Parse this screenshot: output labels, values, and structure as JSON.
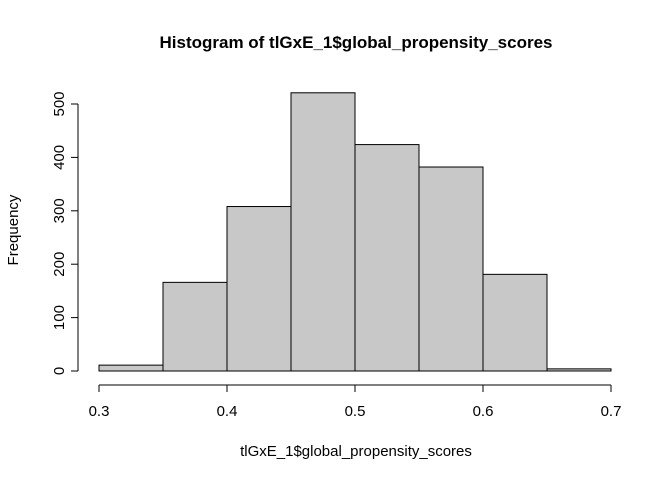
{
  "chart_data": {
    "type": "bar",
    "title": "Histogram of tlGxE_1$global_propensity_scores",
    "xlabel": "tlGxE_1$global_propensity_scores",
    "ylabel": "Frequency",
    "bin_edges": [
      0.3,
      0.35,
      0.4,
      0.45,
      0.5,
      0.55,
      0.6,
      0.65,
      0.7
    ],
    "values": [
      11,
      166,
      308,
      521,
      424,
      382,
      181,
      4
    ],
    "xlim": [
      0.3,
      0.7
    ],
    "ylim": [
      0,
      520
    ],
    "x_ticks": [
      "0.3",
      "0.4",
      "0.5",
      "0.6",
      "0.7"
    ],
    "y_ticks": [
      "0",
      "100",
      "200",
      "300",
      "400",
      "500"
    ],
    "bar_color": "#c8c8c8",
    "grid": false
  }
}
